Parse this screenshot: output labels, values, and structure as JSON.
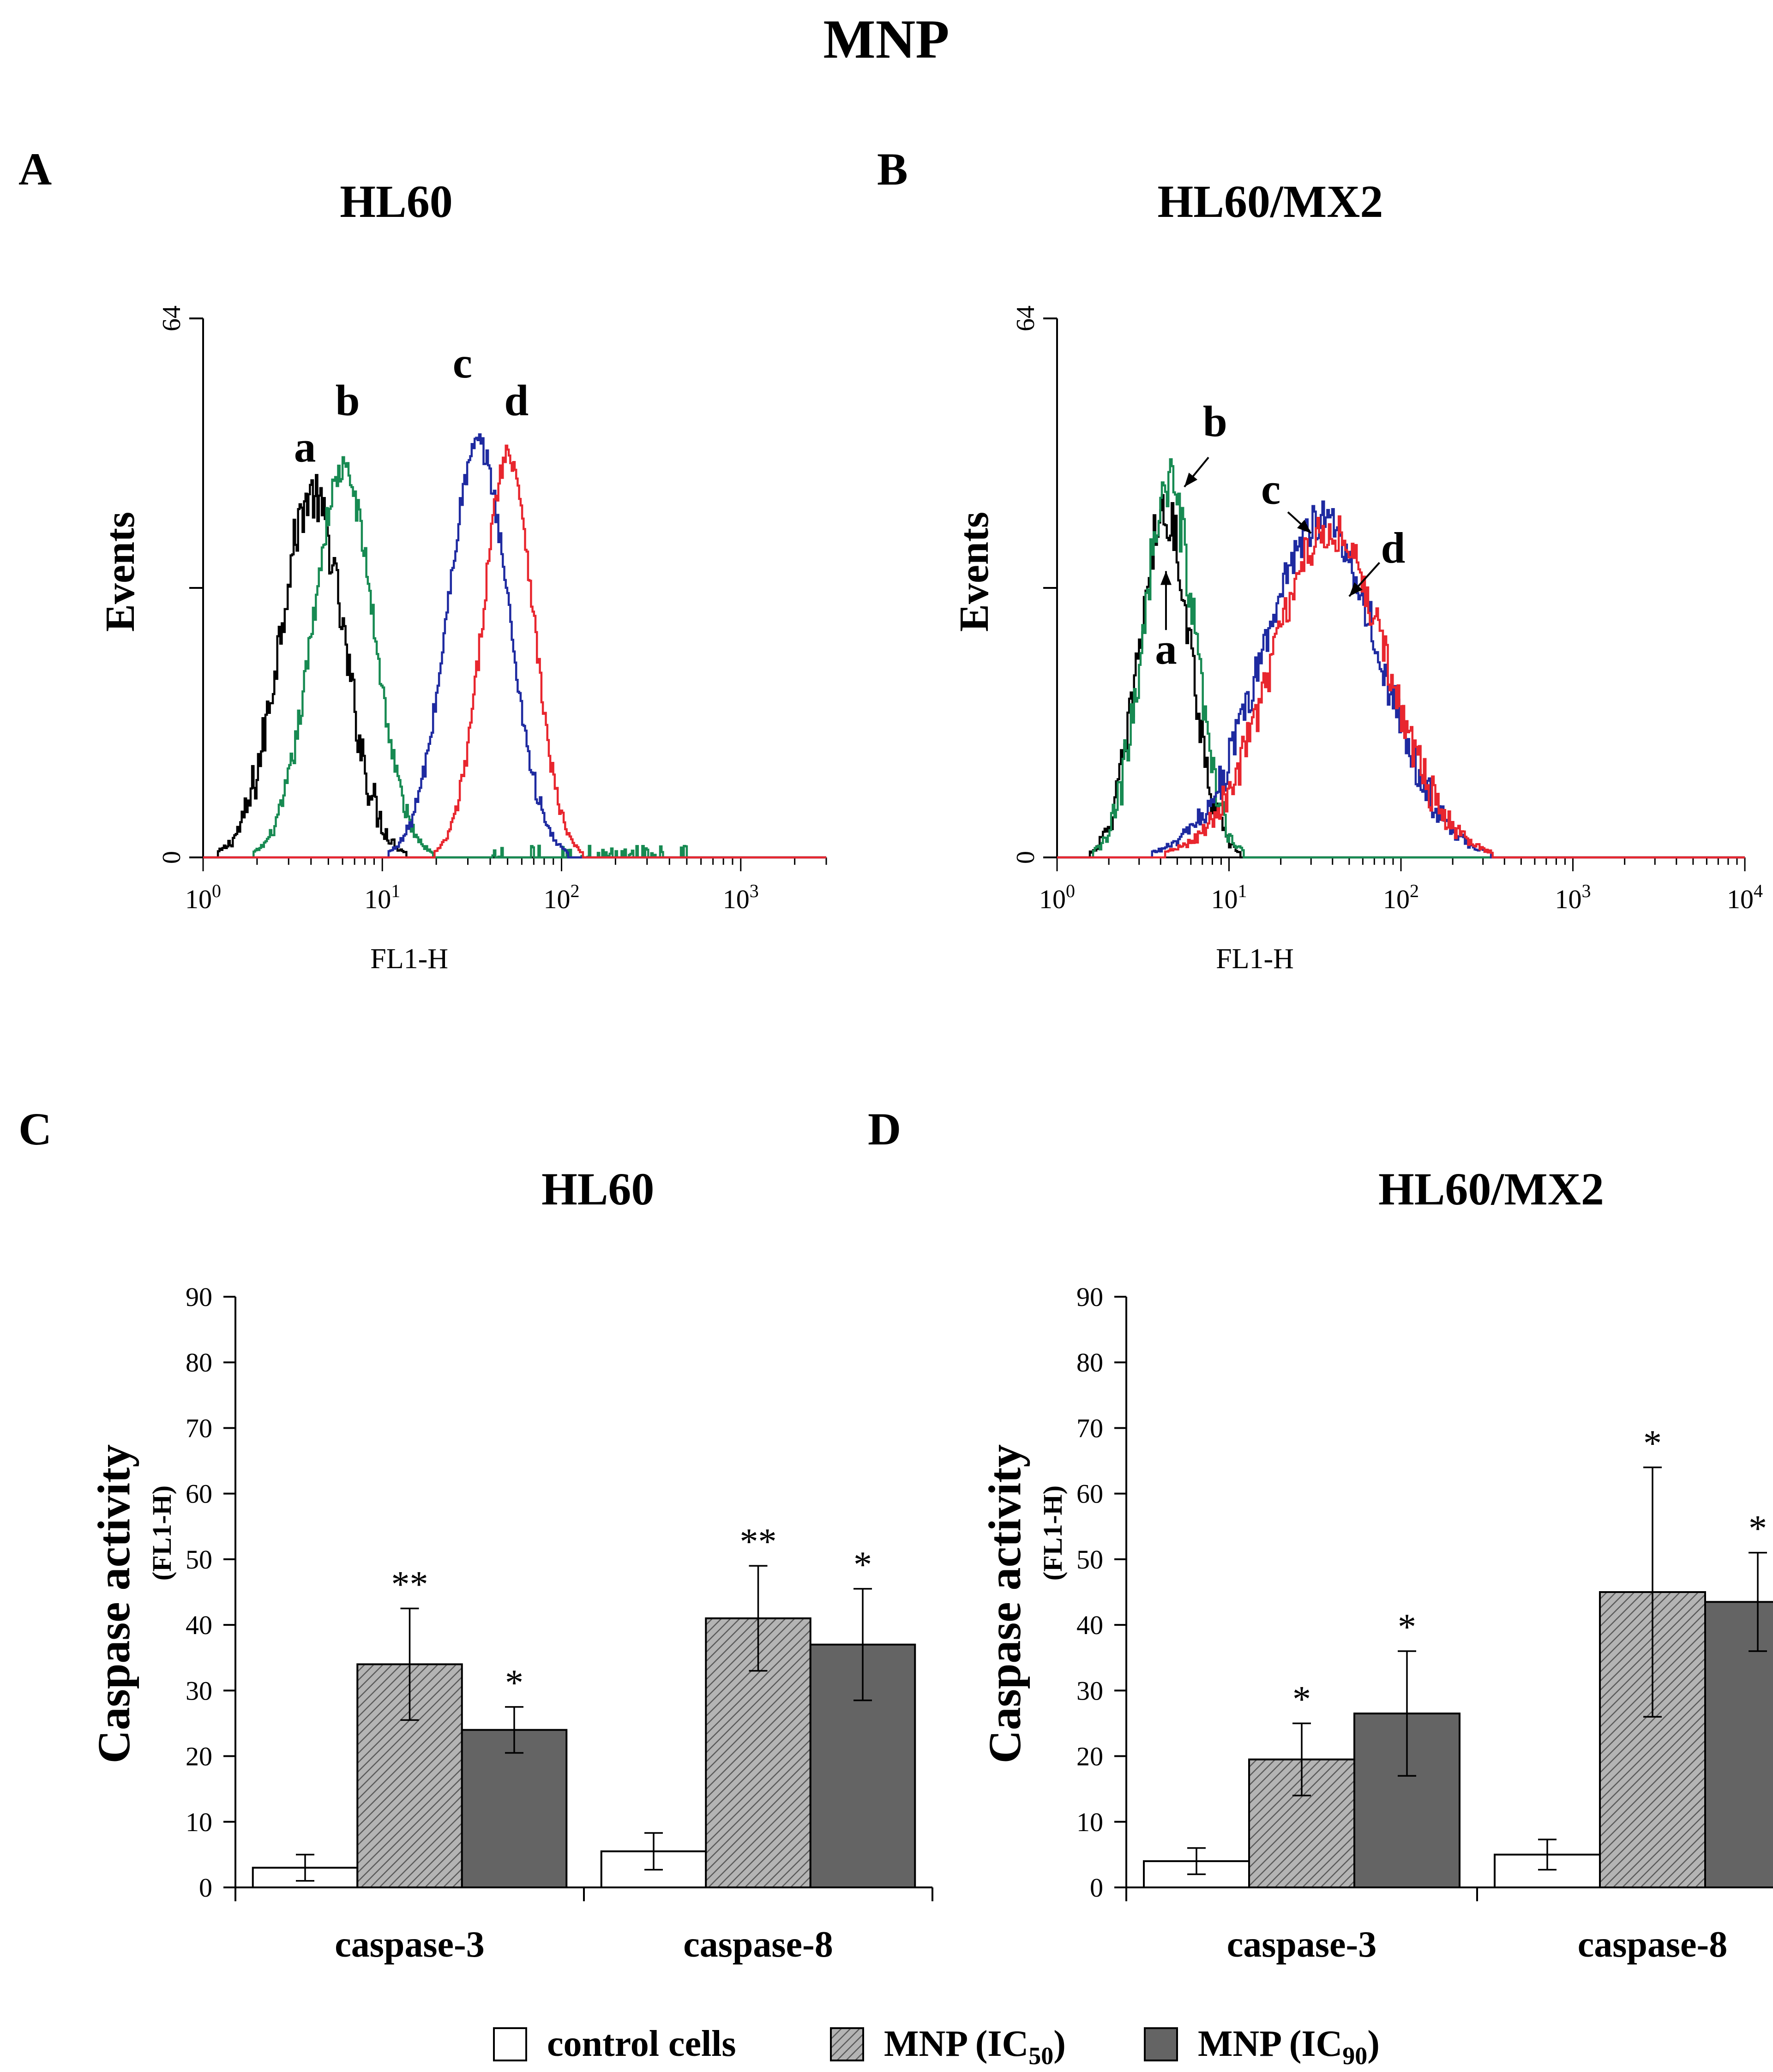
{
  "figure": {
    "title": "MNP",
    "panel_letters": [
      "A",
      "B",
      "C",
      "D"
    ]
  },
  "chart_data": [
    {
      "panel": "A",
      "type": "line",
      "title": "HL60",
      "xlabel": "FL1-H",
      "ylabel": "Events",
      "x_scale": "log10",
      "xlim": [
        1,
        3000
      ],
      "ylim": [
        0,
        64
      ],
      "y_ticks": [
        "0",
        "64"
      ],
      "x_ticks": [
        {
          "value": 1,
          "base": "10",
          "exp": "0"
        },
        {
          "value": 10,
          "base": "10",
          "exp": "1"
        },
        {
          "value": 100,
          "base": "10",
          "exp": "2"
        },
        {
          "value": 1000,
          "base": "10",
          "exp": "3"
        }
      ],
      "series": [
        {
          "name": "a",
          "color": "#000000",
          "mu": 4.0,
          "sigma": 0.18,
          "peak": 43,
          "jitter": 3.0,
          "label_x": 3.7,
          "label_y": 47
        },
        {
          "name": "b",
          "color": "#178a52",
          "mu": 6.0,
          "sigma": 0.17,
          "peak": 46,
          "jitter": 1.8,
          "tail": true,
          "label_x": 6.4,
          "label_y": 52.5
        },
        {
          "name": "c",
          "color": "#1e2aa0",
          "mu": 34,
          "sigma": 0.17,
          "peak": 49,
          "jitter": 1.5,
          "label_x": 28,
          "label_y": 57
        },
        {
          "name": "d",
          "color": "#e8262e",
          "mu": 50,
          "sigma": 0.14,
          "peak": 48,
          "jitter": 1.5,
          "label_x": 56,
          "label_y": 52.5
        }
      ]
    },
    {
      "panel": "B",
      "type": "line",
      "title": "HL60/MX2",
      "xlabel": "FL1-H",
      "ylabel": "Events",
      "x_scale": "log10",
      "xlim": [
        1,
        10000
      ],
      "ylim": [
        0,
        64
      ],
      "y_ticks": [
        "0",
        "64"
      ],
      "x_ticks": [
        {
          "value": 1,
          "base": "10",
          "exp": "0"
        },
        {
          "value": 10,
          "base": "10",
          "exp": "1"
        },
        {
          "value": 100,
          "base": "10",
          "exp": "2"
        },
        {
          "value": 1000,
          "base": "10",
          "exp": "3"
        },
        {
          "value": 10000,
          "base": "10",
          "exp": "4"
        }
      ],
      "series": [
        {
          "name": "a",
          "color": "#000000",
          "mu": 4.2,
          "sigma": 0.15,
          "peak": 41,
          "jitter": 3.0,
          "label_x": 4.3,
          "label_y": 23
        },
        {
          "name": "b",
          "color": "#178a52",
          "mu": 4.4,
          "sigma": 0.15,
          "peak": 44,
          "jitter": 3.5,
          "label_x": 8.3,
          "label_y": 50
        },
        {
          "name": "c",
          "color": "#1e2aa0",
          "mu": 34,
          "sigma": 0.34,
          "peak": 40,
          "jitter": 2.5,
          "label_x": 17.5,
          "label_y": 42
        },
        {
          "name": "d",
          "color": "#e8262e",
          "mu": 38,
          "sigma": 0.33,
          "peak": 39,
          "jitter": 2.5,
          "label_x": 90,
          "label_y": 35
        }
      ],
      "arrows": [
        {
          "label": "b",
          "from": [
            7.6,
            47.5
          ],
          "to": [
            5.5,
            44
          ]
        },
        {
          "label": "c",
          "from": [
            22,
            41
          ],
          "to": [
            30,
            38.5
          ]
        },
        {
          "label": "d",
          "from": [
            75,
            35
          ],
          "to": [
            50,
            31
          ]
        },
        {
          "label": "a",
          "from": [
            4.3,
            27
          ],
          "to": [
            4.3,
            34
          ]
        }
      ]
    },
    {
      "panel": "C",
      "type": "bar",
      "title": "HL60",
      "ylabel": "Caspase activity",
      "ylabel_sub": "(FL1-H)",
      "ylim": [
        0,
        90
      ],
      "y_ticks": [
        "0",
        "10",
        "20",
        "30",
        "40",
        "50",
        "60",
        "70",
        "80",
        "90"
      ],
      "categories": [
        "caspase-3",
        "caspase-8"
      ],
      "series": [
        {
          "name": "control cells",
          "values": [
            3,
            5.5
          ],
          "errors": [
            2,
            2.8
          ],
          "stars": [
            "",
            ""
          ]
        },
        {
          "name": "MNP (IC50)",
          "values": [
            34,
            41
          ],
          "errors": [
            8.5,
            8
          ],
          "stars": [
            "**",
            "**"
          ]
        },
        {
          "name": "MNP (IC90)",
          "values": [
            24,
            37
          ],
          "errors": [
            3.5,
            8.5
          ],
          "stars": [
            "*",
            "*"
          ]
        }
      ]
    },
    {
      "panel": "D",
      "type": "bar",
      "title": "HL60/MX2",
      "ylabel": "Caspase activity",
      "ylabel_sub": "(FL1-H)",
      "ylim": [
        0,
        90
      ],
      "y_ticks": [
        "0",
        "10",
        "20",
        "30",
        "40",
        "50",
        "60",
        "70",
        "80",
        "90"
      ],
      "categories": [
        "caspase-3",
        "caspase-8"
      ],
      "series": [
        {
          "name": "control cells",
          "values": [
            4,
            5
          ],
          "errors": [
            2,
            2.3
          ],
          "stars": [
            "",
            ""
          ]
        },
        {
          "name": "MNP (IC50)",
          "values": [
            19.5,
            45
          ],
          "errors": [
            5.5,
            19
          ],
          "stars": [
            "*",
            "*"
          ]
        },
        {
          "name": "MNP (IC90)",
          "values": [
            26.5,
            43.5
          ],
          "errors": [
            9.5,
            7.5
          ],
          "stars": [
            "*",
            "*"
          ]
        }
      ]
    }
  ],
  "legend": {
    "items": [
      {
        "text": "control cells",
        "sub": ""
      },
      {
        "text": "MNP (IC",
        "sub": "50",
        "close": ")"
      },
      {
        "text": "MNP (IC",
        "sub": "90",
        "close": ")"
      }
    ]
  },
  "colors": {
    "control": "#ffffff",
    "ic50": "#b4b4b4",
    "ic90": "#646464"
  }
}
